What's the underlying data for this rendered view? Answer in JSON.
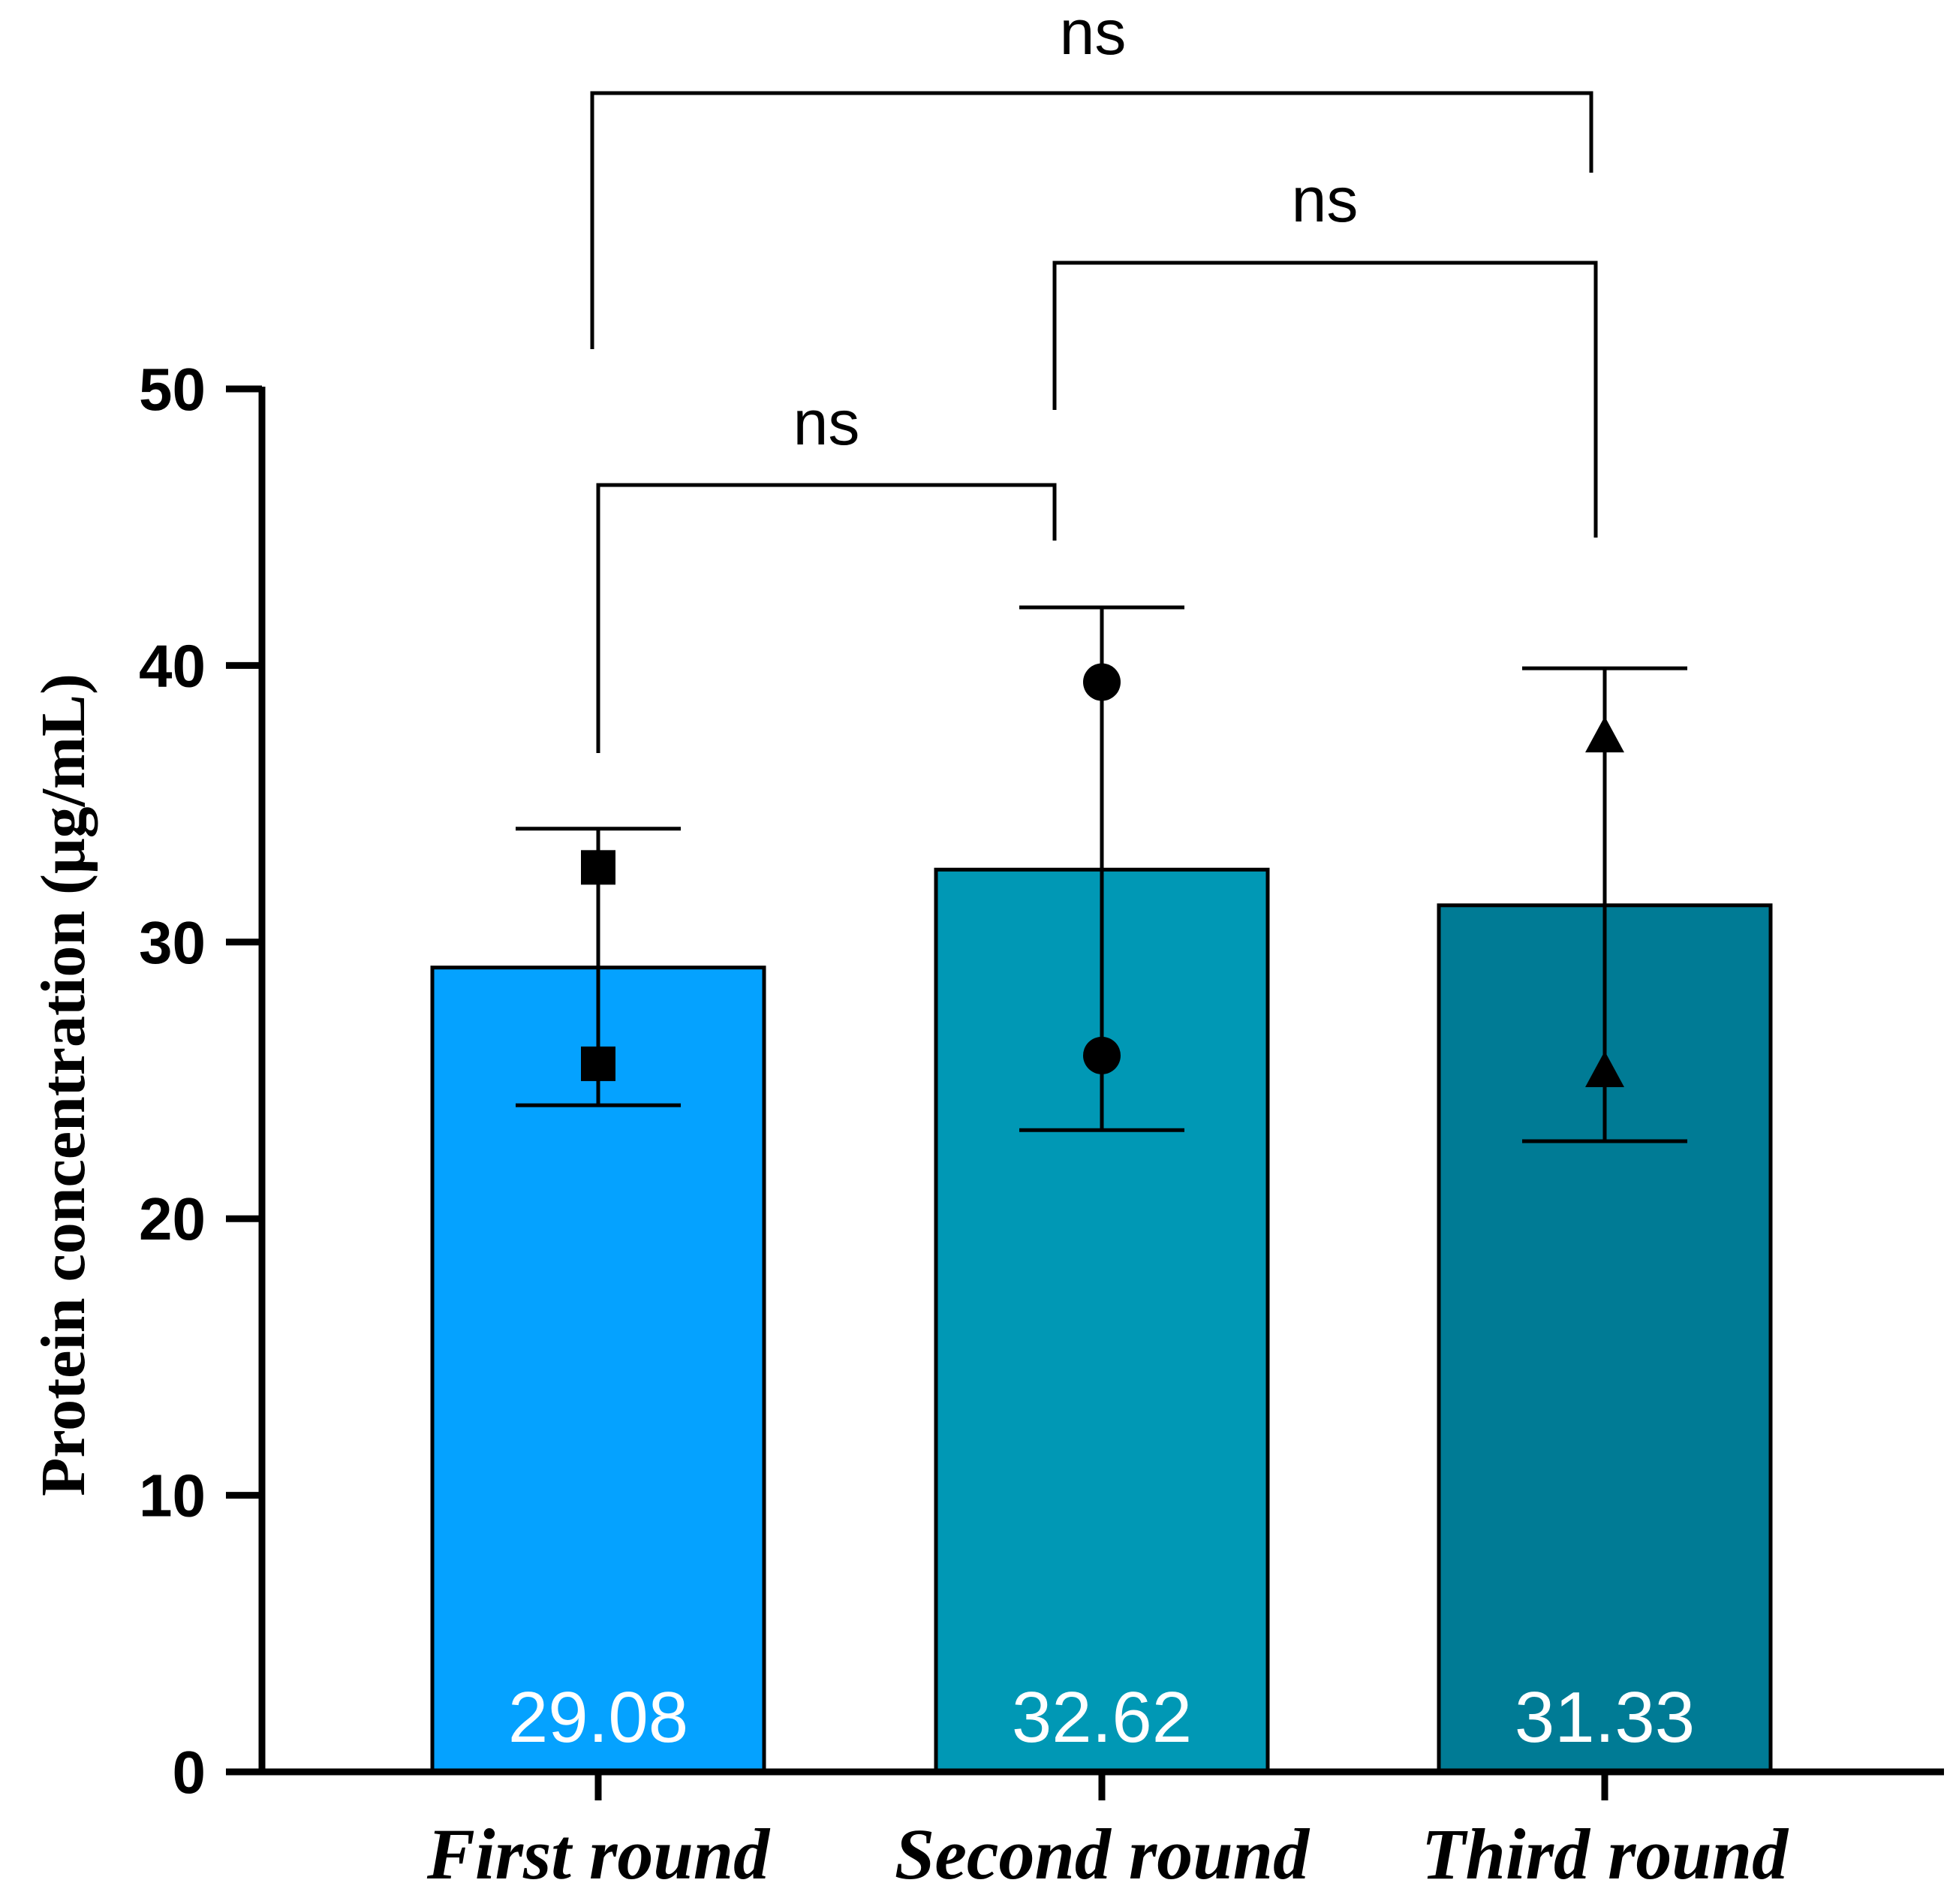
{
  "chart_data": {
    "type": "bar",
    "title": "",
    "xlabel": "",
    "ylabel": "Protein concentration (μg/mL)",
    "ylim": [
      0,
      50
    ],
    "yticks": [
      0,
      10,
      20,
      30,
      40,
      50
    ],
    "grid": false,
    "legend": "none",
    "categories": [
      "First round",
      "Second round",
      "Third round"
    ],
    "values": [
      29.08,
      32.62,
      31.33
    ],
    "value_labels": [
      "29.08",
      "32.62",
      "31.33"
    ],
    "error_bars": [
      {
        "lower": 24.1,
        "upper": 34.1
      },
      {
        "lower": 23.2,
        "upper": 42.1
      },
      {
        "lower": 22.8,
        "upper": 39.9
      }
    ],
    "points": [
      {
        "marker": "square",
        "values": [
          32.7,
          25.6
        ]
      },
      {
        "marker": "circle",
        "values": [
          39.4,
          25.9
        ]
      },
      {
        "marker": "triangle",
        "values": [
          37.4,
          25.3
        ]
      }
    ],
    "colors": [
      "#05a2ff",
      "#0098b5",
      "#007b95"
    ],
    "comparisons": [
      {
        "from": 0,
        "to": 1,
        "label": "ns"
      },
      {
        "from": 1,
        "to": 2,
        "label": "ns"
      },
      {
        "from": 0,
        "to": 2,
        "label": "ns"
      }
    ]
  }
}
